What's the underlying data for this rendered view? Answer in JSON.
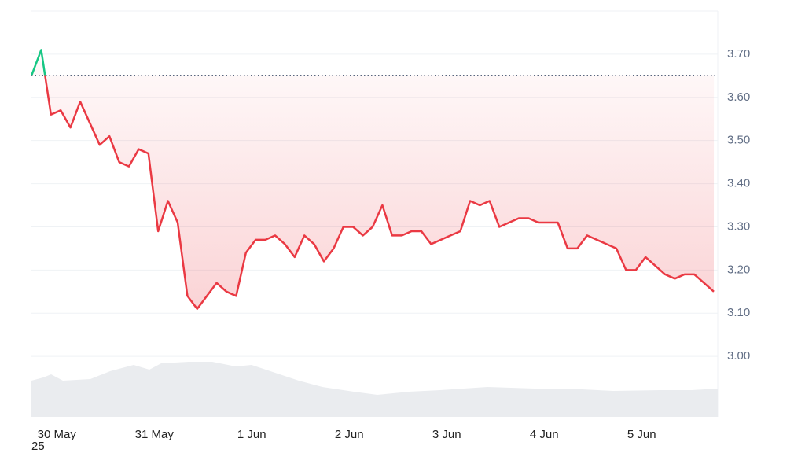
{
  "chart_data": {
    "type": "line",
    "x": [
      -0.26,
      -0.16,
      -0.06,
      0.04,
      0.14,
      0.24,
      0.34,
      0.44,
      0.54,
      0.64,
      0.74,
      0.84,
      0.94,
      1.04,
      1.14,
      1.24,
      1.34,
      1.44,
      1.54,
      1.64,
      1.74,
      1.84,
      1.94,
      2.04,
      2.14,
      2.24,
      2.34,
      2.44,
      2.54,
      2.64,
      2.74,
      2.84,
      2.94,
      3.04,
      3.14,
      3.24,
      3.34,
      3.44,
      3.54,
      3.64,
      3.74,
      3.84,
      3.94,
      4.04,
      4.14,
      4.24,
      4.34,
      4.44,
      4.54,
      4.64,
      4.74,
      4.84,
      4.94,
      5.04,
      5.14,
      5.24,
      5.34,
      5.44,
      5.54,
      5.64,
      5.74,
      5.84,
      5.94,
      6.04,
      6.14,
      6.24,
      6.34,
      6.44,
      6.54,
      6.64,
      6.74
    ],
    "values": [
      3.65,
      3.71,
      3.56,
      3.57,
      3.53,
      3.59,
      3.54,
      3.49,
      3.51,
      3.45,
      3.44,
      3.48,
      3.47,
      3.29,
      3.36,
      3.31,
      3.14,
      3.11,
      3.14,
      3.17,
      3.15,
      3.14,
      3.24,
      3.27,
      3.27,
      3.28,
      3.26,
      3.23,
      3.28,
      3.26,
      3.22,
      3.25,
      3.3,
      3.3,
      3.28,
      3.3,
      3.35,
      3.28,
      3.28,
      3.29,
      3.29,
      3.26,
      3.27,
      3.28,
      3.29,
      3.36,
      3.35,
      3.36,
      3.3,
      3.31,
      3.32,
      3.32,
      3.31,
      3.31,
      3.31,
      3.25,
      3.25,
      3.28,
      3.27,
      3.26,
      3.25,
      3.2,
      3.2,
      3.23,
      3.21,
      3.19,
      3.18,
      3.19,
      3.19,
      3.17,
      3.15
    ],
    "color": "#ea3943",
    "up_color": "#16c784",
    "reference_line": 3.65,
    "xlim": [
      -0.26,
      6.78
    ],
    "xticks": [
      {
        "value": 0,
        "label": "30 May"
      },
      {
        "value": 1,
        "label": "31 May"
      },
      {
        "value": 2,
        "label": "1 Jun"
      },
      {
        "value": 3,
        "label": "2 Jun"
      },
      {
        "value": 4,
        "label": "3 Jun"
      },
      {
        "value": 5,
        "label": "4 Jun"
      },
      {
        "value": 6,
        "label": "5 Jun"
      }
    ],
    "xtick_sublabel": "25",
    "ylim": [
      2.86,
      3.8
    ],
    "yticks": [
      {
        "value": 3.0,
        "label": "3.00"
      },
      {
        "value": 3.1,
        "label": "3.10"
      },
      {
        "value": 3.2,
        "label": "3.20"
      },
      {
        "value": 3.3,
        "label": "3.30"
      },
      {
        "value": 3.4,
        "label": "3.40"
      },
      {
        "value": 3.5,
        "label": "3.50"
      },
      {
        "value": 3.6,
        "label": "3.60"
      },
      {
        "value": 3.7,
        "label": "3.70"
      }
    ],
    "grid": true
  }
}
